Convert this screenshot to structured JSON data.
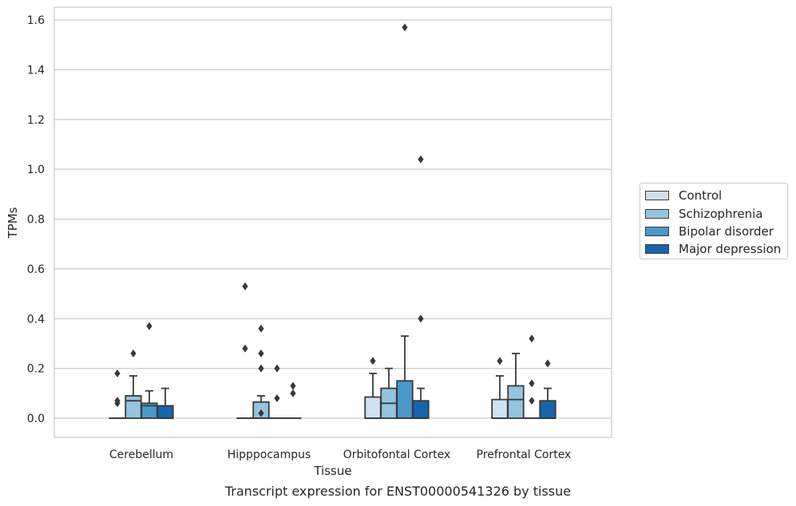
{
  "caption": "Transcript expression for ENST00000541326 by tissue",
  "chart_data": {
    "type": "boxplot",
    "title": "",
    "xlabel": "Tissue",
    "ylabel": "TPMs",
    "ylim": [
      -0.08,
      1.65
    ],
    "yticks": [
      0.0,
      0.2,
      0.4,
      0.6,
      0.8,
      1.0,
      1.2,
      1.4,
      1.6
    ],
    "ytick_labels": [
      "0.0",
      "0.2",
      "0.4",
      "0.6",
      "0.8",
      "1.0",
      "1.2",
      "1.4",
      "1.6"
    ],
    "grid": "horizontal",
    "legend_position": "right",
    "categories": [
      "Cerebellum",
      "Hipppocampus",
      "Orbitofontal Cortex",
      "Prefrontal Cortex"
    ],
    "series": [
      {
        "name": "Control",
        "color": "#d0e1f2",
        "boxes": [
          {
            "q1": 0,
            "median": 0,
            "q3": 0,
            "whisker_low": 0,
            "whisker_high": 0,
            "outliers": [
              0.18,
              0.07,
              0.06
            ]
          },
          {
            "q1": 0,
            "median": 0,
            "q3": 0,
            "whisker_low": 0,
            "whisker_high": 0,
            "outliers": [
              0.53,
              0.28
            ]
          },
          {
            "q1": 0,
            "median": 0,
            "q3": 0.085,
            "whisker_low": 0,
            "whisker_high": 0.18,
            "outliers": [
              0.23
            ]
          },
          {
            "q1": 0,
            "median": 0,
            "q3": 0.075,
            "whisker_low": 0,
            "whisker_high": 0.17,
            "outliers": [
              0.23
            ]
          }
        ]
      },
      {
        "name": "Schizophrenia",
        "color": "#94c4df",
        "boxes": [
          {
            "q1": 0,
            "median": 0.07,
            "q3": 0.09,
            "whisker_low": 0,
            "whisker_high": 0.17,
            "outliers": [
              0.26
            ]
          },
          {
            "q1": 0,
            "median": 0,
            "q3": 0.065,
            "whisker_low": 0,
            "whisker_high": 0.09,
            "outliers": [
              0.36,
              0.26,
              0.2,
              0.02
            ]
          },
          {
            "q1": 0,
            "median": 0.06,
            "q3": 0.12,
            "whisker_low": 0,
            "whisker_high": 0.2,
            "outliers": []
          },
          {
            "q1": 0,
            "median": 0.075,
            "q3": 0.13,
            "whisker_low": 0,
            "whisker_high": 0.26,
            "outliers": []
          }
        ]
      },
      {
        "name": "Bipolar disorder",
        "color": "#4a98c9",
        "boxes": [
          {
            "q1": 0,
            "median": 0.05,
            "q3": 0.06,
            "whisker_low": 0,
            "whisker_high": 0.11,
            "outliers": [
              0.37
            ]
          },
          {
            "q1": 0,
            "median": 0,
            "q3": 0,
            "whisker_low": 0,
            "whisker_high": 0,
            "outliers": [
              0.2,
              0.08
            ]
          },
          {
            "q1": 0,
            "median": 0,
            "q3": 0.15,
            "whisker_low": 0,
            "whisker_high": 0.33,
            "outliers": [
              1.57
            ]
          },
          {
            "q1": 0,
            "median": 0,
            "q3": 0,
            "whisker_low": 0,
            "whisker_high": 0,
            "outliers": [
              0.32,
              0.14,
              0.07
            ]
          }
        ]
      },
      {
        "name": "Major depression",
        "color": "#1764ab",
        "boxes": [
          {
            "q1": 0,
            "median": 0,
            "q3": 0.05,
            "whisker_low": 0,
            "whisker_high": 0.12,
            "outliers": []
          },
          {
            "q1": 0,
            "median": 0,
            "q3": 0,
            "whisker_low": 0,
            "whisker_high": 0,
            "outliers": [
              0.13,
              0.1
            ]
          },
          {
            "q1": 0,
            "median": 0,
            "q3": 0.07,
            "whisker_low": 0,
            "whisker_high": 0.12,
            "outliers": [
              1.04,
              0.4
            ]
          },
          {
            "q1": 0,
            "median": 0,
            "q3": 0.07,
            "whisker_low": 0,
            "whisker_high": 0.12,
            "outliers": [
              0.22
            ]
          }
        ]
      }
    ]
  }
}
